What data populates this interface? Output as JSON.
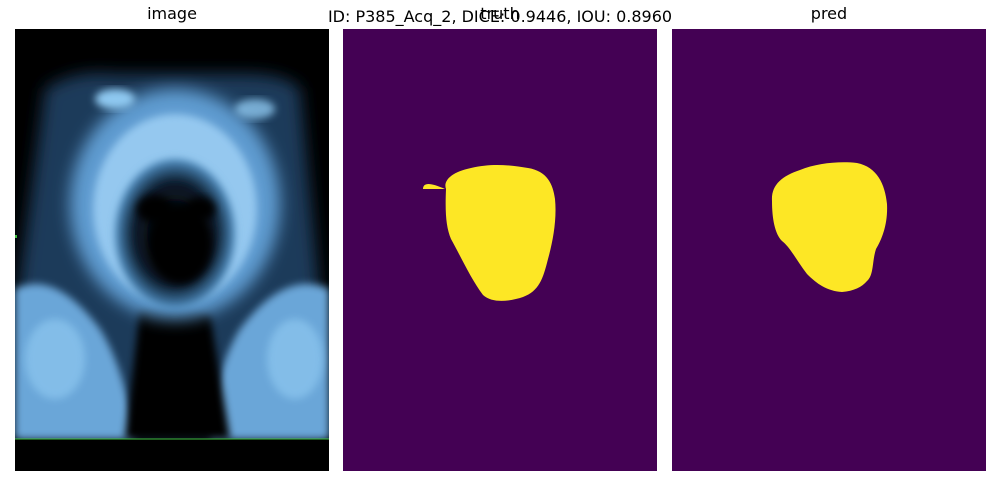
{
  "figure": {
    "title": "ID: P385_Acq_2, DICE: 0.9446, IOU: 0.8960",
    "panels": [
      {
        "key": "image",
        "title": "image"
      },
      {
        "key": "truth",
        "title": "truth"
      },
      {
        "key": "pred",
        "title": "pred"
      }
    ]
  },
  "colors": {
    "background": "#440154",
    "mask": "#fde725",
    "ultrasound_tint": "#8ec8f0"
  }
}
